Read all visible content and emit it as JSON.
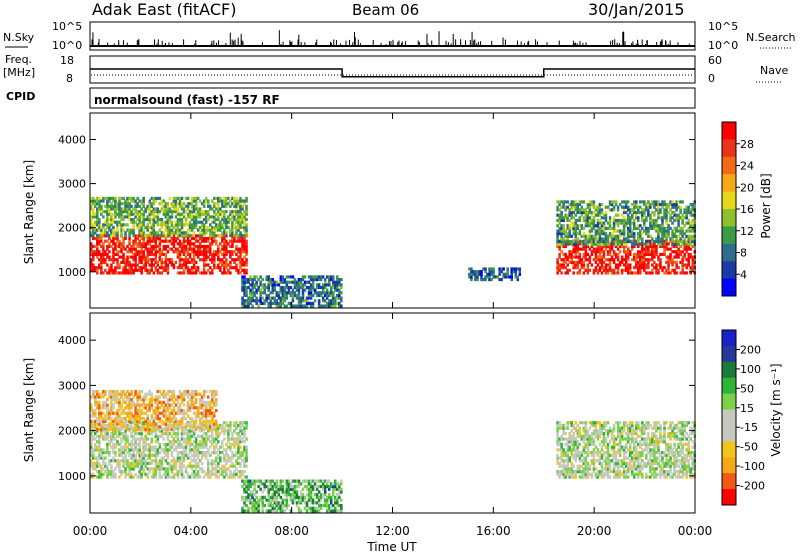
{
  "header": {
    "station": "Adak East (fitACF)",
    "beam": "Beam 06",
    "date": "30/Jan/2015"
  },
  "nsky_panel": {
    "left_label": "N.Sky",
    "right_label": "N.Search",
    "left_ticks": [
      "10^5",
      "10^0"
    ],
    "right_ticks": [
      "10^5",
      "10^0"
    ]
  },
  "freq_panel": {
    "left_label_line1": "Freq.",
    "left_label_line2": "[MHz]",
    "left_ticks": [
      "18",
      "8"
    ],
    "right_ticks": [
      "60",
      "0"
    ],
    "right_label": "Nave",
    "freq_steps": [
      {
        "t": 0,
        "f": 13.2
      },
      {
        "t": 10,
        "f": 10.3
      },
      {
        "t": 18,
        "f": 13.2
      },
      {
        "t": 24,
        "f": 13.2
      }
    ]
  },
  "cpid": {
    "label": "CPID",
    "text": "normalsound (fast) -157 RF"
  },
  "x_axis": {
    "label": "Time UT",
    "ticks": [
      "00:00",
      "04:00",
      "08:00",
      "12:00",
      "16:00",
      "20:00",
      "00:00"
    ]
  },
  "colors": {
    "power": [
      "#0000ff",
      "#1a3aa6",
      "#2e6e8c",
      "#3c9b46",
      "#8fbf2a",
      "#e3d81a",
      "#f7a81a",
      "#f26a14",
      "#e8321c",
      "#ff0000"
    ],
    "velocity": [
      "#ff0000",
      "#f05a14",
      "#f7a81a",
      "#f2c51d",
      "#c8c8c0",
      "#c8c8c0",
      "#7bd24a",
      "#2fb43a",
      "#1b7a3c",
      "#233a9a",
      "#1a22c8"
    ]
  },
  "chart_data": [
    {
      "type": "heatmap",
      "xlabel": "Time UT",
      "ylabel": "Slant Range [km]",
      "xlim": [
        0,
        24
      ],
      "ylim": [
        180,
        4600
      ],
      "yticks": [
        "1000",
        "2000",
        "3000",
        "4000"
      ],
      "colorbar": {
        "label": "Power [dB]",
        "ticks": [
          "4",
          "8",
          "12",
          "16",
          "20",
          "24",
          "28"
        ]
      },
      "bands": [
        {
          "t0": 0,
          "t1": 6.2,
          "r0": 950,
          "r1": 1800,
          "level": 0.9
        },
        {
          "t0": 0,
          "t1": 6.2,
          "r0": 1800,
          "r1": 2700,
          "level": 0.4
        },
        {
          "t0": 6.0,
          "t1": 10,
          "r0": 200,
          "r1": 900,
          "level": 0.25
        },
        {
          "t0": 15,
          "t1": 17,
          "r0": 800,
          "r1": 1100,
          "level": 0.2
        },
        {
          "t0": 18.5,
          "t1": 24,
          "r0": 950,
          "r1": 1700,
          "level": 0.9
        },
        {
          "t0": 18.5,
          "t1": 24,
          "r0": 1600,
          "r1": 2600,
          "level": 0.35
        }
      ]
    },
    {
      "type": "heatmap",
      "xlabel": "Time UT",
      "ylabel": "Slant Range [km]",
      "xlim": [
        0,
        24
      ],
      "ylim": [
        180,
        4600
      ],
      "yticks": [
        "1000",
        "2000",
        "3000",
        "4000"
      ],
      "colorbar": {
        "label": "Velocity [m s⁻¹]",
        "ticks": [
          "200",
          "100",
          "50",
          "15",
          "-15",
          "-50",
          "-100",
          "-200"
        ]
      },
      "bands": [
        {
          "t0": 0,
          "t1": 6.2,
          "r0": 950,
          "r1": 2200,
          "level": 0.5
        },
        {
          "t0": 0,
          "t1": 5,
          "r0": 2000,
          "r1": 2900,
          "level": 0.3
        },
        {
          "t0": 6.0,
          "t1": 10,
          "r0": 200,
          "r1": 900,
          "level": 0.65
        },
        {
          "t0": 18.5,
          "t1": 24,
          "r0": 950,
          "r1": 2200,
          "level": 0.5
        }
      ]
    }
  ]
}
